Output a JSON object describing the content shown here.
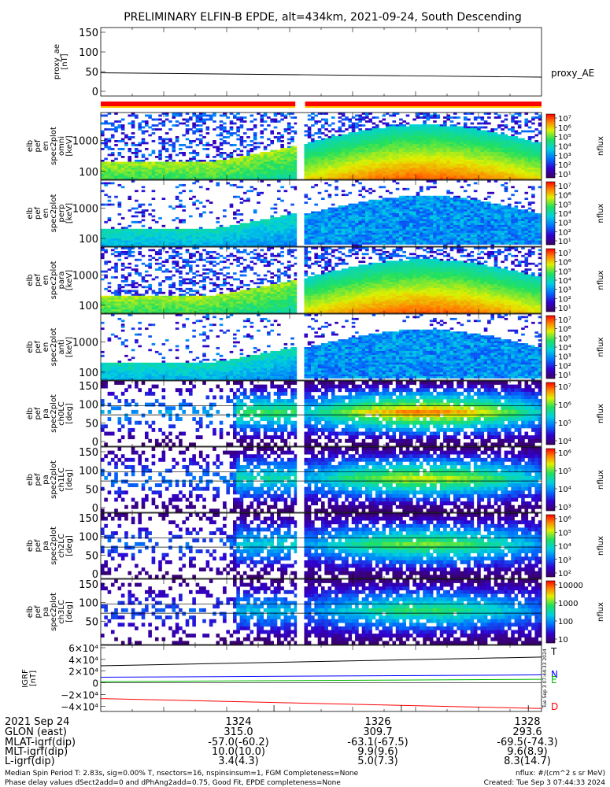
{
  "title": "PRELIMINARY ELFIN-B EPDE, alt=434km, 2021-09-24, South Descending",
  "proxy_ae": {
    "ylabel_lines": [
      "proxy_ae",
      "[nT]"
    ],
    "yticks": [
      "150",
      "100",
      "50",
      "0"
    ],
    "series_label": "proxy_AE"
  },
  "bars_colors": {
    "top": "#ff0000",
    "under": "#ffcc00"
  },
  "spec_panels": [
    {
      "name": "energy-spectrogram-1",
      "ylabel_lines": [
        "elb",
        "pef",
        "en",
        "spec2plot",
        "omni",
        "[keV]"
      ],
      "yticks": [
        "1000",
        "100"
      ],
      "cb_labels": [
        "10⁷",
        "10⁶",
        "10⁵",
        "10⁴",
        "10³",
        "10²",
        "10¹"
      ],
      "cb_title": "nflux"
    },
    {
      "name": "energy-spectrogram-2",
      "ylabel_lines": [
        "elb",
        "pef",
        "en",
        "spec2plot",
        "perp",
        "[keV]"
      ],
      "yticks": [
        "1000",
        "100"
      ],
      "cb_labels": [
        "10⁷",
        "10⁶",
        "10⁵",
        "10⁴",
        "10³",
        "10²",
        "10¹"
      ],
      "cb_title": "nflux"
    },
    {
      "name": "energy-spectrogram-3",
      "ylabel_lines": [
        "elb",
        "pef",
        "en",
        "spec2plot",
        "para",
        "[keV]"
      ],
      "yticks": [
        "1000",
        "100"
      ],
      "cb_labels": [
        "10⁷",
        "10⁶",
        "10⁵",
        "10⁴",
        "10³",
        "10²",
        "10¹"
      ],
      "cb_title": "nflux"
    },
    {
      "name": "energy-spectrogram-4",
      "ylabel_lines": [
        "elb",
        "pef",
        "en",
        "spec2plot",
        "anti",
        "[keV]"
      ],
      "yticks": [
        "1000",
        "100"
      ],
      "cb_labels": [
        "10⁷",
        "10⁶",
        "10⁵",
        "10⁴",
        "10³",
        "10²",
        "10¹"
      ],
      "cb_title": "nflux"
    },
    {
      "name": "pitch-angle-ch0",
      "ylabel_lines": [
        "elb",
        "pef",
        "pa",
        "spec2plot",
        "ch0LC",
        "[deg]"
      ],
      "yticks": [
        "150",
        "100",
        "50",
        "0"
      ],
      "cb_labels": [
        "10⁷",
        "10⁶",
        "10⁵",
        "10⁴"
      ],
      "cb_title": "nflux"
    },
    {
      "name": "pitch-angle-ch1",
      "ylabel_lines": [
        "elb",
        "pef",
        "pa",
        "spec2plot",
        "ch1LC",
        "[deg]"
      ],
      "yticks": [
        "150",
        "100",
        "50",
        "0"
      ],
      "cb_labels": [
        "10⁶",
        "10⁵",
        "10⁴",
        "10³"
      ],
      "cb_title": "nflux"
    },
    {
      "name": "pitch-angle-ch2",
      "ylabel_lines": [
        "elb",
        "pef",
        "pa",
        "spec2plot",
        "ch2LC",
        "[deg]"
      ],
      "yticks": [
        "150",
        "100",
        "50",
        "0"
      ],
      "cb_labels": [
        "10⁶",
        "10⁵",
        "10⁴",
        "10³",
        "10²"
      ],
      "cb_title": "nflux"
    },
    {
      "name": "pitch-angle-ch3",
      "ylabel_lines": [
        "elb",
        "pef",
        "pa",
        "spec2plot",
        "ch3LC",
        "[deg]"
      ],
      "yticks": [
        "150",
        "100",
        "50"
      ],
      "cb_labels": [
        "10000",
        "1000",
        "100",
        "10"
      ],
      "cb_title": "nflux"
    }
  ],
  "igrf": {
    "ylabel_lines": [
      "IGRF",
      "[nT]"
    ],
    "yticks": [
      "6×10⁴",
      "4×10⁴",
      "2×10⁴",
      "0",
      "−2×10⁴",
      "−4×10⁴"
    ],
    "labels": [
      {
        "text": "T",
        "color": "#000000"
      },
      {
        "text": "N",
        "color": "#0000ff"
      },
      {
        "text": "E",
        "color": "#00bb00"
      },
      {
        "text": "D",
        "color": "#ff0000"
      }
    ],
    "stamp": "Tue Sep  3 07:44:33 2024"
  },
  "ephem": {
    "row_labels": [
      "2021 Sep 24",
      "GLON (east)",
      "MLAT-igrf(dip)",
      "MLT-igrf(dip)",
      "L-igrf(dip)"
    ],
    "columns": [
      {
        "time": "1324",
        "values": [
          "315.0",
          "-57.0(-60.2)",
          "10.0(10.0)",
          "3.4(4.3)"
        ]
      },
      {
        "time": "1326",
        "values": [
          "309.7",
          "-63.1(-67.5)",
          "9.9(9.6)",
          "5.0(7.3)"
        ]
      },
      {
        "time": "1328",
        "values": [
          "293.6",
          "-69.5(-74.3)",
          "9.6(8.9)",
          "8.3(14.7)"
        ]
      }
    ]
  },
  "footer": {
    "left_lines": [
      "Median Spin Period T: 2.83s, sig=0.00% T, nsectors=16, nspinsinsum=1, FGM Completeness=None",
      "Phase delay values dSect2add=0 and dPhAng2add=0.75, Good Fit, EPDE completeness=None"
    ],
    "right_lines": [
      "nflux: #/(cm^2 s sr MeV)",
      "Created: Tue Sep  3 07:44:33 2024"
    ]
  },
  "chart_data": {
    "type": "heatmap",
    "x_time_ticks": [
      "1324",
      "1326",
      "1328"
    ],
    "proxy_ae": {
      "type": "line",
      "ylim": [
        0,
        150
      ],
      "values_start_end": [
        47,
        36
      ]
    },
    "igrf": {
      "type": "line",
      "ylim": [
        -45000,
        60000
      ],
      "series": [
        {
          "name": "T",
          "values_start_end": [
            29000,
            44000
          ]
        },
        {
          "name": "N",
          "values_start_end": [
            9500,
            13500
          ]
        },
        {
          "name": "E",
          "values_start_end": [
            2000,
            6000
          ]
        },
        {
          "name": "D",
          "values_start_end": [
            -27000,
            -44000
          ]
        }
      ]
    },
    "colorscale": "rainbow",
    "data_gap_fraction": [
      0.445,
      0.46
    ]
  }
}
